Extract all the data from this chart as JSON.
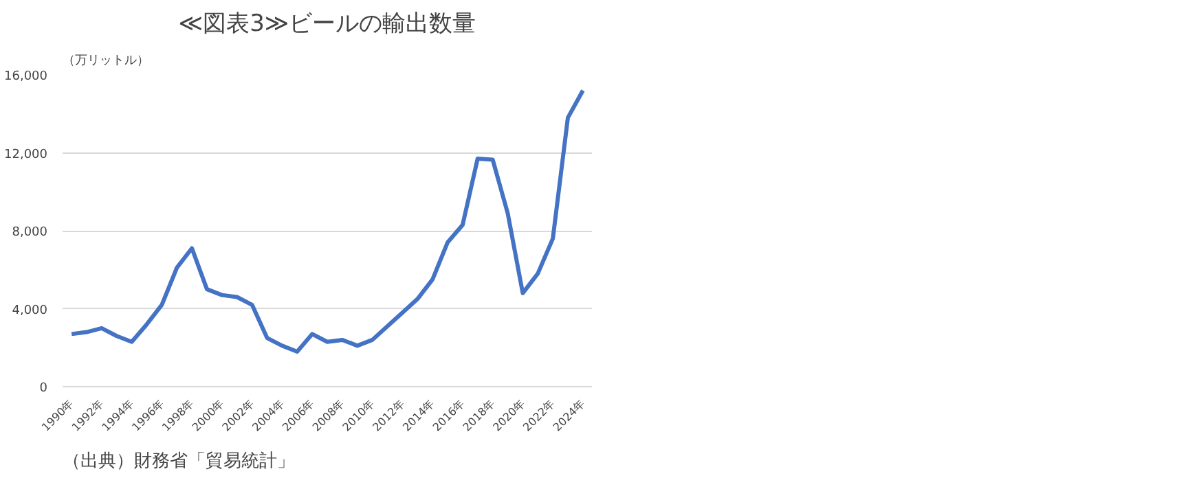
{
  "chart_data": {
    "type": "line",
    "title": "≪図表3≫ビールの輸出数量",
    "ylabel": "（万リットル）",
    "categories": [
      "1990年",
      null,
      "1992年",
      null,
      "1994年",
      null,
      "1996年",
      null,
      "1998年",
      null,
      "2000年",
      null,
      "2002年",
      null,
      "2004年",
      null,
      "2006年",
      null,
      "2008年",
      null,
      "2010年",
      null,
      "2012年",
      null,
      "2014年",
      null,
      "2016年",
      null,
      "2018年",
      null,
      "2020年",
      null,
      "2022年",
      null,
      "2024年"
    ],
    "series": [
      {
        "color": "#4472c4",
        "values": [
          2700,
          2800,
          3000,
          2600,
          2300,
          3200,
          4200,
          6100,
          7100,
          5000,
          4700,
          4600,
          4200,
          2500,
          2100,
          1800,
          2700,
          2300,
          2400,
          2100,
          2400,
          3100,
          3800,
          4500,
          5500,
          7400,
          8300,
          11700,
          11650,
          8900,
          4800,
          5800,
          7600,
          13800,
          15200
        ]
      }
    ],
    "ylim": [
      0,
      16000
    ],
    "yticks": [
      {
        "value": 0,
        "label": "0"
      },
      {
        "value": 4000,
        "label": "4,000"
      },
      {
        "value": 8000,
        "label": "8,000"
      },
      {
        "value": 12000,
        "label": "12,000"
      },
      {
        "value": 16000,
        "label": "16,000"
      }
    ],
    "grid": "y",
    "marker": "none",
    "line_style": "solid",
    "annotations": [
      "（出典）財務省「貿易統計」"
    ]
  }
}
